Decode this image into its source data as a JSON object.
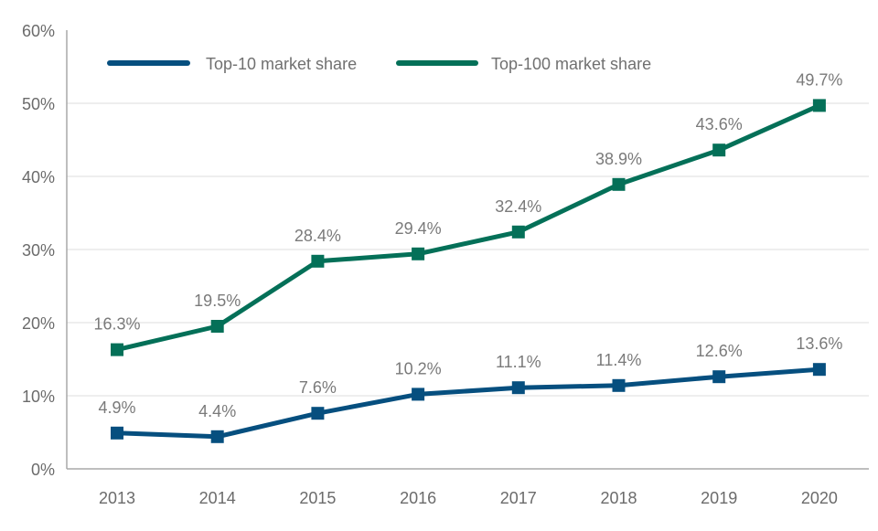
{
  "chart_data": {
    "type": "line",
    "title": "",
    "xlabel": "",
    "ylabel": "",
    "categories": [
      "2013",
      "2014",
      "2015",
      "2016",
      "2017",
      "2018",
      "2019",
      "2020"
    ],
    "ylim": [
      0,
      60
    ],
    "yticks": [
      0,
      10,
      20,
      30,
      40,
      50,
      60
    ],
    "ytick_labels": [
      "0%",
      "10%",
      "20%",
      "30%",
      "40%",
      "50%",
      "60%"
    ],
    "grid": true,
    "legend_position": "top-left",
    "series": [
      {
        "name": "Top-10 market share",
        "color": "#064f7f",
        "marker": "square",
        "values": [
          4.9,
          4.4,
          7.6,
          10.2,
          11.1,
          11.4,
          12.6,
          13.6
        ],
        "labels": [
          "4.9%",
          "4.4%",
          "7.6%",
          "10.2%",
          "11.1%",
          "11.4%",
          "12.6%",
          "13.6%"
        ]
      },
      {
        "name": "Top-100 market share",
        "color": "#047058",
        "marker": "square",
        "values": [
          16.3,
          19.5,
          28.4,
          29.4,
          32.4,
          38.9,
          43.6,
          49.7
        ],
        "labels": [
          "16.3%",
          "19.5%",
          "28.4%",
          "29.4%",
          "32.4%",
          "38.9%",
          "43.6%",
          "49.7%"
        ]
      }
    ]
  },
  "colors": {
    "gridline": "#dcdcdc",
    "axis": "#a8a8a8",
    "text": "#6b6b6b"
  }
}
